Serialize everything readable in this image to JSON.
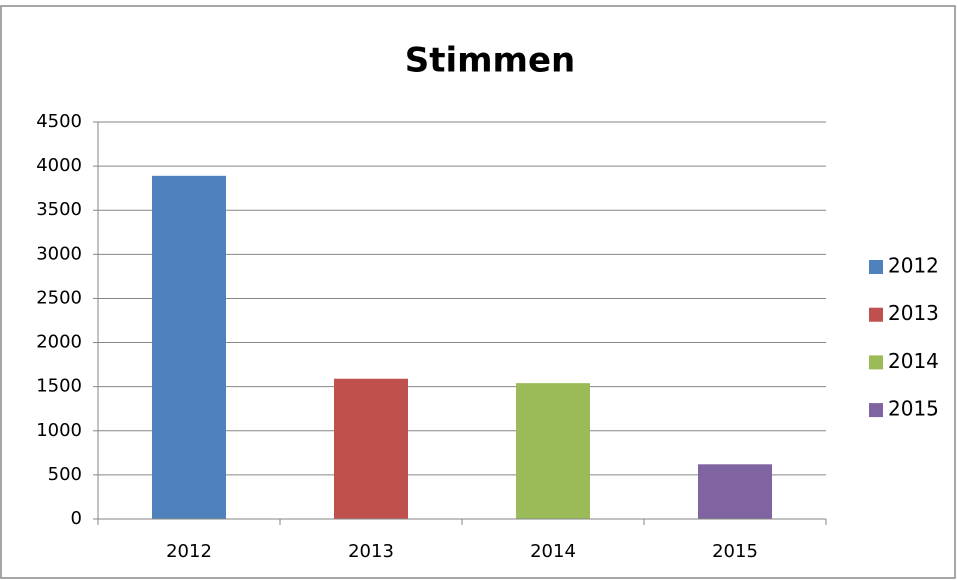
{
  "chart_data": {
    "type": "bar",
    "title": "Stimmen",
    "categories": [
      "2012",
      "2013",
      "2014",
      "2015"
    ],
    "values": [
      3890,
      1590,
      1540,
      620
    ],
    "colors": [
      "#4f81bd",
      "#c0504d",
      "#9bbb59",
      "#8064a2"
    ],
    "ylim": [
      0,
      4500
    ],
    "yticks": [
      0,
      500,
      1000,
      1500,
      2000,
      2500,
      3000,
      3500,
      4000,
      4500
    ],
    "grid": true,
    "legend": "right"
  }
}
